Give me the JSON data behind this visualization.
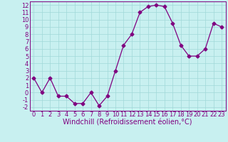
{
  "x": [
    0,
    1,
    2,
    3,
    4,
    5,
    6,
    7,
    8,
    9,
    10,
    11,
    12,
    13,
    14,
    15,
    16,
    17,
    18,
    19,
    20,
    21,
    22,
    23
  ],
  "y": [
    2,
    0,
    2,
    -0.5,
    -0.5,
    -1.5,
    -1.5,
    0,
    -1.8,
    -0.5,
    3,
    6.5,
    8,
    11,
    11.8,
    12,
    11.8,
    9.5,
    6.5,
    5,
    5,
    6,
    9.5,
    9
  ],
  "line_color": "#800080",
  "marker": "D",
  "marker_size": 2.5,
  "bg_color": "#c8f0f0",
  "grid_color": "#a0d8d8",
  "xlabel": "Windchill (Refroidissement éolien,°C)",
  "xlabel_fontsize": 7,
  "ylim": [
    -2.5,
    12.5
  ],
  "yticks": [
    -2,
    -1,
    0,
    1,
    2,
    3,
    4,
    5,
    6,
    7,
    8,
    9,
    10,
    11,
    12
  ],
  "xticks": [
    0,
    1,
    2,
    3,
    4,
    5,
    6,
    7,
    8,
    9,
    10,
    11,
    12,
    13,
    14,
    15,
    16,
    17,
    18,
    19,
    20,
    21,
    22,
    23
  ],
  "tick_fontsize": 6,
  "xlim": [
    -0.5,
    23.5
  ]
}
